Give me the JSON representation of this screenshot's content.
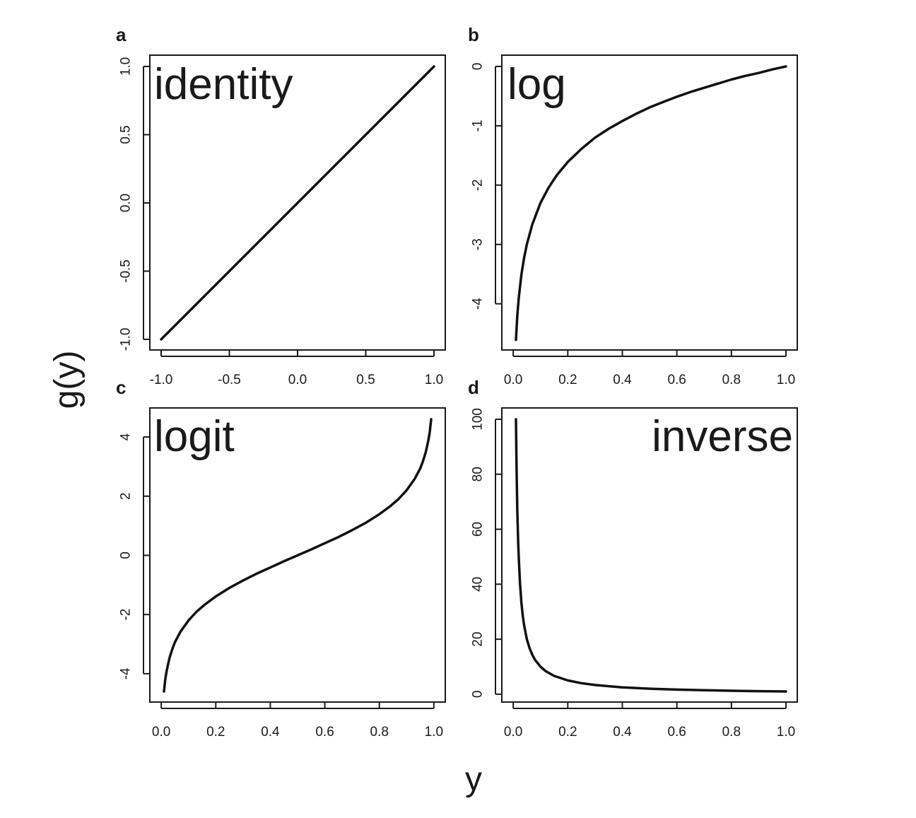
{
  "axis_titles": {
    "x": "y",
    "y": "g(y)"
  },
  "chart_data": [
    {
      "type": "line",
      "panel": "a",
      "title": "identity",
      "xlim": [
        -1.0,
        1.0
      ],
      "ylim": [
        -1.0,
        1.0
      ],
      "x_ticks": [
        "-1.0",
        "-0.5",
        "0.0",
        "0.5",
        "1.0"
      ],
      "y_ticks": [
        "-1.0",
        "-0.5",
        "0.0",
        "0.5",
        "1.0"
      ],
      "series": [
        {
          "x": [
            -1.0,
            1.0
          ],
          "y": [
            -1.0,
            1.0
          ]
        }
      ]
    },
    {
      "type": "line",
      "panel": "b",
      "title": "log",
      "xlim": [
        0.01,
        1.0
      ],
      "ylim": [
        -4.6,
        0
      ],
      "x_ticks": [
        "0.0",
        "0.2",
        "0.4",
        "0.6",
        "0.8",
        "1.0"
      ],
      "y_ticks": [
        "-4",
        "-3",
        "-2",
        "-1",
        "0"
      ],
      "series": [
        {
          "x": [
            0.01,
            0.015,
            0.02,
            0.03,
            0.04,
            0.05,
            0.07,
            0.1,
            0.13,
            0.16,
            0.2,
            0.25,
            0.3,
            0.35,
            0.4,
            0.45,
            0.5,
            0.55,
            0.6,
            0.65,
            0.7,
            0.75,
            0.8,
            0.85,
            0.9,
            0.95,
            1.0
          ],
          "y": [
            -4.61,
            -4.2,
            -3.91,
            -3.51,
            -3.22,
            -3.0,
            -2.66,
            -2.3,
            -2.04,
            -1.83,
            -1.61,
            -1.39,
            -1.2,
            -1.05,
            -0.92,
            -0.8,
            -0.69,
            -0.6,
            -0.51,
            -0.43,
            -0.36,
            -0.29,
            -0.22,
            -0.16,
            -0.11,
            -0.05,
            0.0
          ]
        }
      ]
    },
    {
      "type": "line",
      "panel": "c",
      "title": "logit",
      "xlim": [
        0.01,
        0.99
      ],
      "ylim": [
        -4.6,
        4.6
      ],
      "x_ticks": [
        "0.0",
        "0.2",
        "0.4",
        "0.6",
        "0.8",
        "1.0"
      ],
      "y_ticks": [
        "-4",
        "-2",
        "0",
        "2",
        "4"
      ],
      "series": [
        {
          "x": [
            0.01,
            0.015,
            0.02,
            0.03,
            0.04,
            0.05,
            0.07,
            0.1,
            0.13,
            0.16,
            0.2,
            0.25,
            0.3,
            0.35,
            0.4,
            0.45,
            0.5,
            0.55,
            0.6,
            0.65,
            0.7,
            0.75,
            0.8,
            0.84,
            0.87,
            0.9,
            0.93,
            0.95,
            0.96,
            0.97,
            0.98,
            0.985,
            0.99
          ],
          "y": [
            -4.6,
            -4.18,
            -3.89,
            -3.48,
            -3.18,
            -2.94,
            -2.59,
            -2.2,
            -1.9,
            -1.66,
            -1.39,
            -1.1,
            -0.85,
            -0.62,
            -0.41,
            -0.2,
            0.0,
            0.2,
            0.41,
            0.62,
            0.85,
            1.1,
            1.39,
            1.66,
            1.9,
            2.2,
            2.59,
            2.94,
            3.18,
            3.48,
            3.89,
            4.18,
            4.6
          ]
        }
      ]
    },
    {
      "type": "line",
      "panel": "d",
      "title": "inverse",
      "xlim": [
        0.01,
        1.0
      ],
      "ylim": [
        1,
        100
      ],
      "x_ticks": [
        "0.0",
        "0.2",
        "0.4",
        "0.6",
        "0.8",
        "1.0"
      ],
      "y_ticks": [
        "0",
        "20",
        "40",
        "60",
        "80",
        "100"
      ],
      "series": [
        {
          "x": [
            0.01,
            0.012,
            0.015,
            0.018,
            0.02,
            0.025,
            0.03,
            0.035,
            0.04,
            0.05,
            0.06,
            0.07,
            0.08,
            0.1,
            0.12,
            0.15,
            0.2,
            0.25,
            0.3,
            0.4,
            0.5,
            0.6,
            0.7,
            0.8,
            0.9,
            1.0
          ],
          "y": [
            100,
            83.3,
            66.7,
            55.6,
            50,
            40,
            33.3,
            28.6,
            25,
            20,
            16.7,
            14.3,
            12.5,
            10,
            8.33,
            6.67,
            5,
            4,
            3.33,
            2.5,
            2,
            1.67,
            1.43,
            1.25,
            1.11,
            1.0
          ]
        }
      ]
    }
  ]
}
